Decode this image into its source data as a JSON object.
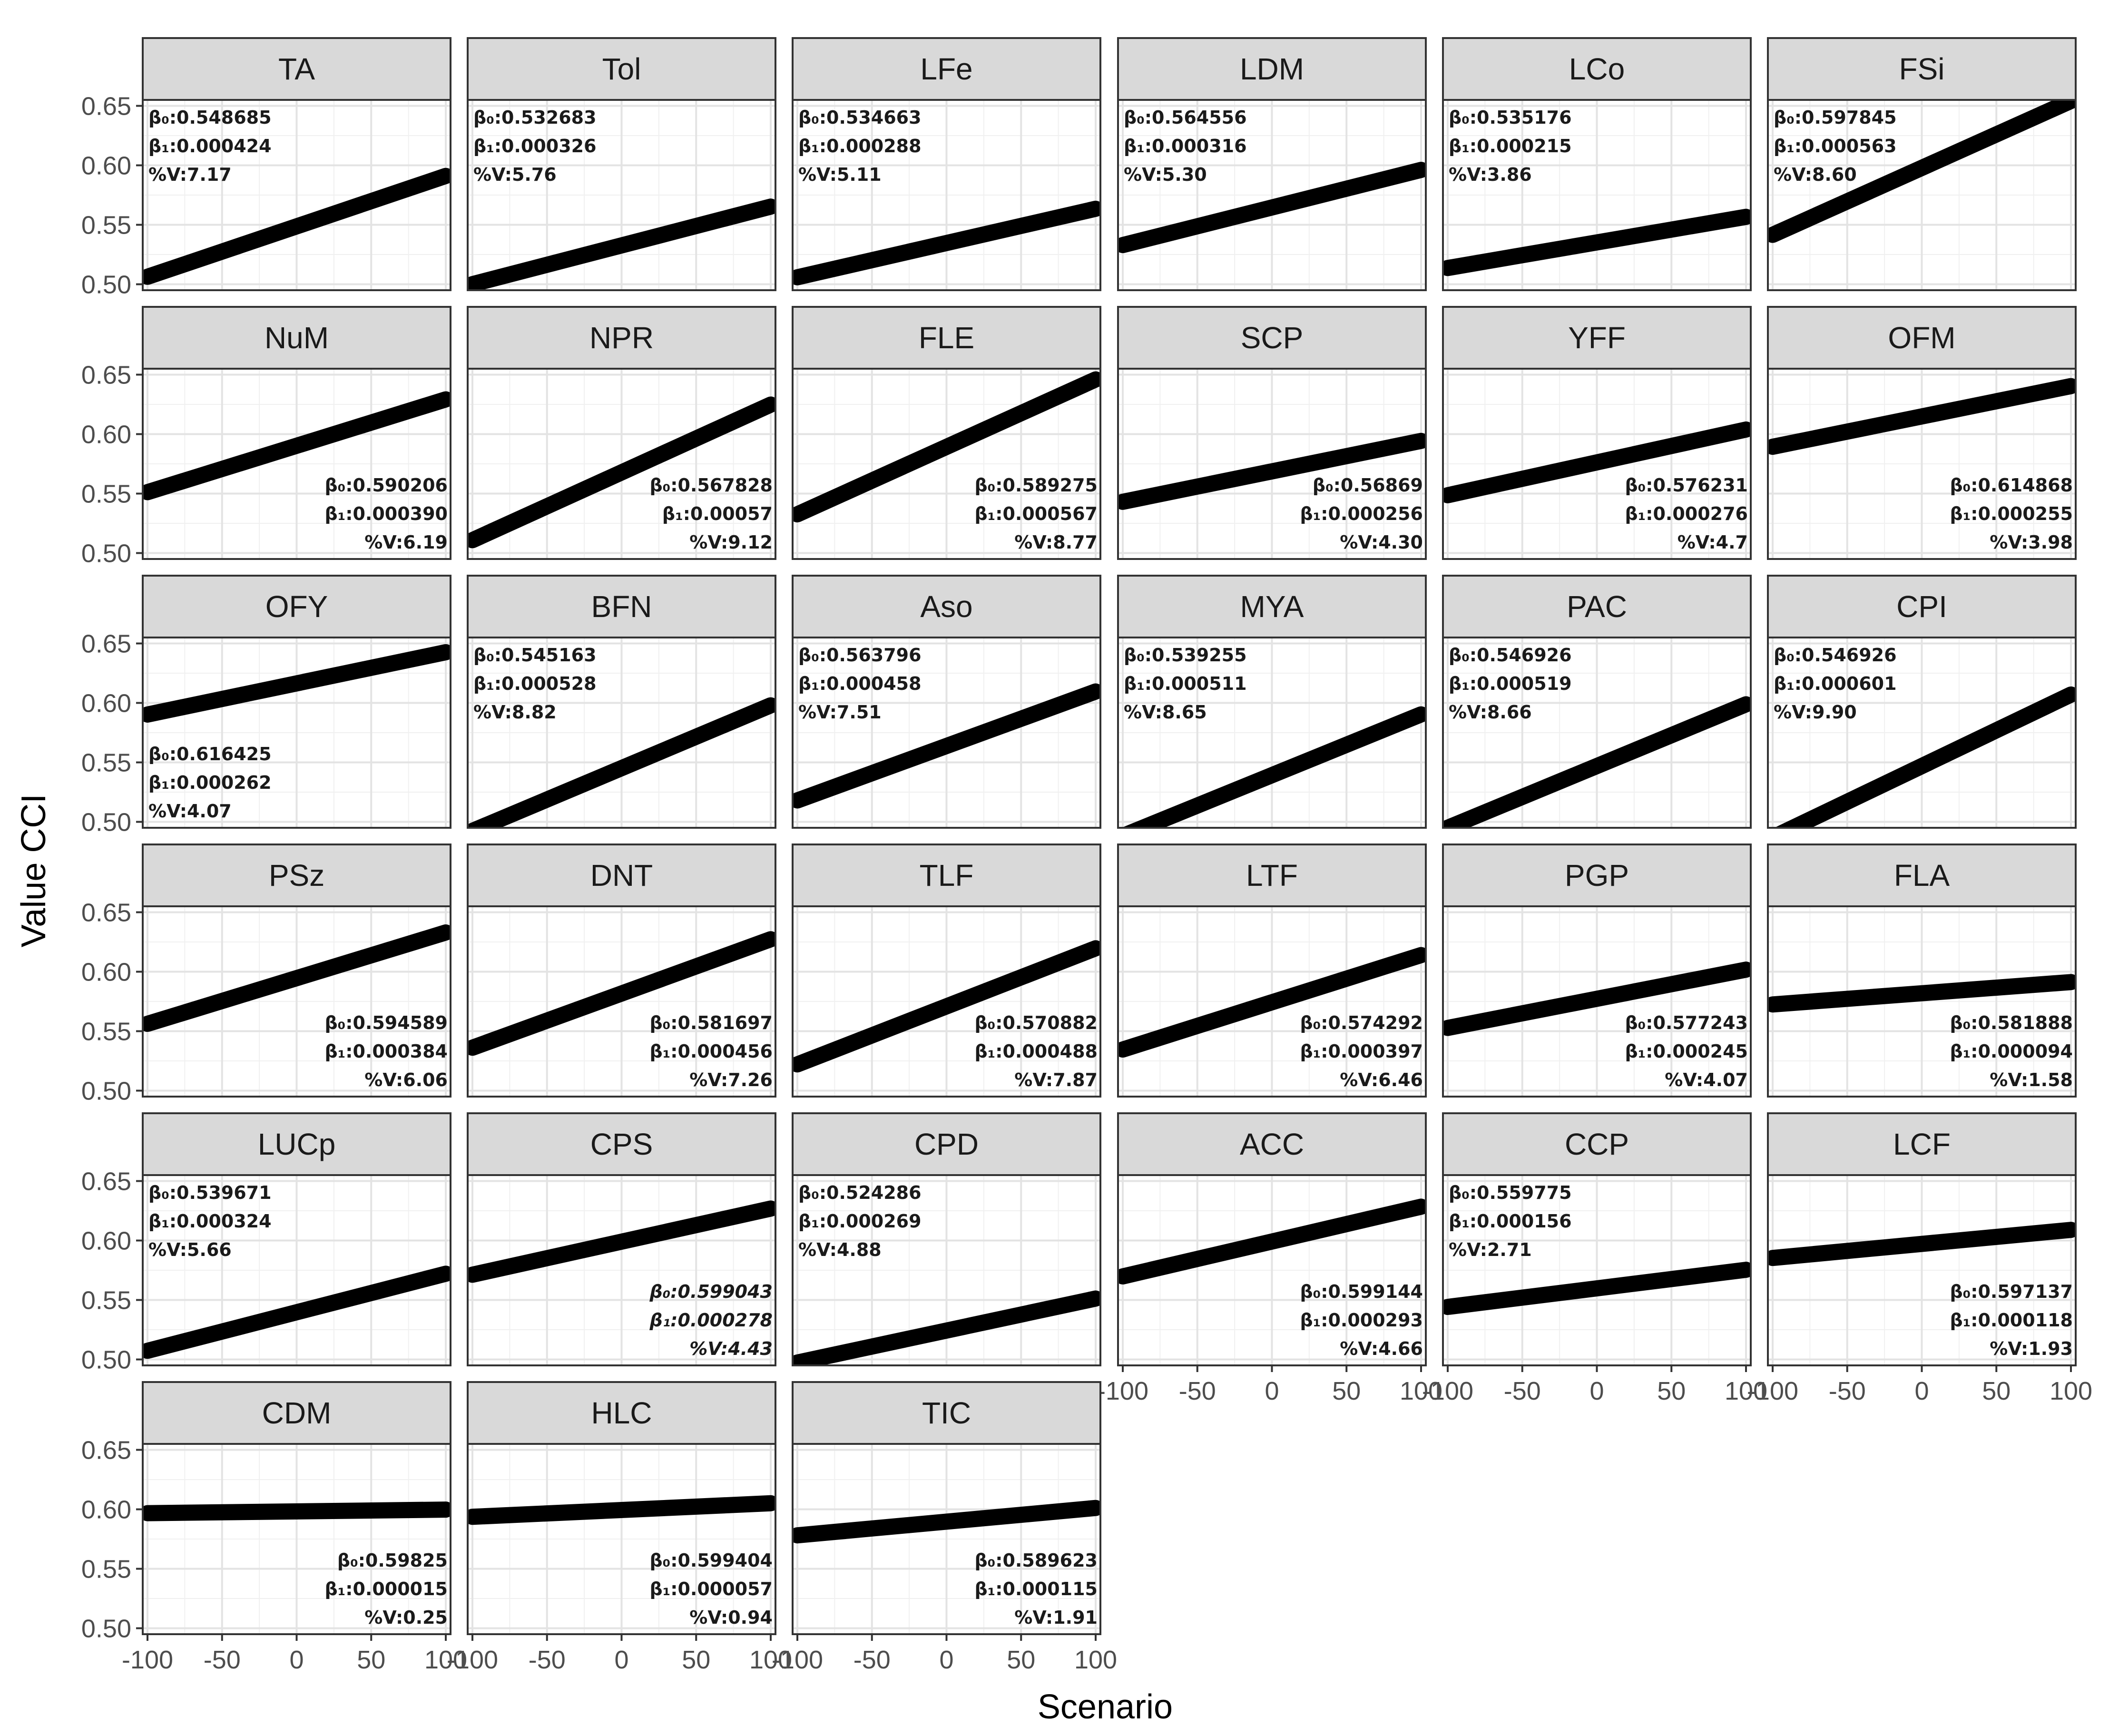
{
  "chart_data": {
    "type": "line",
    "xlabel": "Scenario",
    "ylabel": "Value CCI",
    "xlim": [
      -100,
      100
    ],
    "ylim": [
      0.495,
      0.655
    ],
    "x_ticks": [
      -100,
      -50,
      0,
      50,
      100
    ],
    "y_ticks": [
      0.5,
      0.55,
      0.6,
      0.65
    ],
    "x_tick_labels": [
      "-100",
      "-50",
      "0",
      "50",
      "100"
    ],
    "y_tick_labels": [
      "0.50",
      "0.55",
      "0.60",
      "0.65"
    ],
    "grid": true,
    "ncol": 6,
    "coef_labels": {
      "b0": "β₀:",
      "b1": "β₁:",
      "pv": "%V:"
    },
    "panels": [
      {
        "name": "TA",
        "b0": "0.548685",
        "b1": "0.000424",
        "pv": "7.17",
        "ann": "top-left"
      },
      {
        "name": "Tol",
        "b0": "0.532683",
        "b1": "0.000326",
        "pv": "5.76",
        "ann": "top-left"
      },
      {
        "name": "LFe",
        "b0": "0.534663",
        "b1": "0.000288",
        "pv": "5.11",
        "ann": "top-left"
      },
      {
        "name": "LDM",
        "b0": "0.564556",
        "b1": "0.000316",
        "pv": "5.30",
        "ann": "top-left"
      },
      {
        "name": "LCo",
        "b0": "0.535176",
        "b1": "0.000215",
        "pv": "3.86",
        "ann": "top-left"
      },
      {
        "name": "FSi",
        "b0": "0.597845",
        "b1": "0.000563",
        "pv": "8.60",
        "ann": "top-left"
      },
      {
        "name": "NuM",
        "b0": "0.590206",
        "b1": "0.000390",
        "pv": "6.19",
        "ann": "bottom-right"
      },
      {
        "name": "NPR",
        "b0": "0.567828",
        "b1": "0.00057",
        "pv": "9.12",
        "ann": "bottom-right"
      },
      {
        "name": "FLE",
        "b0": "0.589275",
        "b1": "0.000567",
        "pv": "8.77",
        "ann": "bottom-right"
      },
      {
        "name": "SCP",
        "b0": "0.56869",
        "b1": "0.000256",
        "pv": "4.30",
        "ann": "bottom-right"
      },
      {
        "name": "YFF",
        "b0": "0.576231",
        "b1": "0.000276",
        "pv": "4.7",
        "ann": "bottom-right"
      },
      {
        "name": "OFM",
        "b0": "0.614868",
        "b1": "0.000255",
        "pv": "3.98",
        "ann": "bottom-right"
      },
      {
        "name": "OFY",
        "b0": "0.616425",
        "b1": "0.000262",
        "pv": "4.07",
        "ann": "bottom-left"
      },
      {
        "name": "BFN",
        "b0": "0.545163",
        "b1": "0.000528",
        "pv": "8.82",
        "ann": "top-left"
      },
      {
        "name": "Aso",
        "b0": "0.563796",
        "b1": "0.000458",
        "pv": "7.51",
        "ann": "top-left"
      },
      {
        "name": "MYA",
        "b0": "0.539255",
        "b1": "0.000511",
        "pv": "8.65",
        "ann": "top-left"
      },
      {
        "name": "PAC",
        "b0": "0.546926",
        "b1": "0.000519",
        "pv": "8.66",
        "ann": "top-left"
      },
      {
        "name": "CPI",
        "b0": "0.546926",
        "b1": "0.000601",
        "pv": "9.90",
        "ann": "top-left"
      },
      {
        "name": "PSz",
        "b0": "0.594589",
        "b1": "0.000384",
        "pv": "6.06",
        "ann": "bottom-right"
      },
      {
        "name": "DNT",
        "b0": "0.581697",
        "b1": "0.000456",
        "pv": "7.26",
        "ann": "bottom-right"
      },
      {
        "name": "TLF",
        "b0": "0.570882",
        "b1": "0.000488",
        "pv": "7.87",
        "ann": "bottom-right"
      },
      {
        "name": "LTF",
        "b0": "0.574292",
        "b1": "0.000397",
        "pv": "6.46",
        "ann": "bottom-right"
      },
      {
        "name": "PGP",
        "b0": "0.577243",
        "b1": "0.000245",
        "pv": "4.07",
        "ann": "bottom-right"
      },
      {
        "name": "FLA",
        "b0": "0.581888",
        "b1": "0.000094",
        "pv": "1.58",
        "ann": "bottom-right"
      },
      {
        "name": "LUCp",
        "b0": "0.539671",
        "b1": "0.000324",
        "pv": "5.66",
        "ann": "top-left"
      },
      {
        "name": "CPS",
        "b0": "0.599043",
        "b1": "0.000278",
        "pv": "4.43",
        "ann": "bottom-right",
        "italic": true
      },
      {
        "name": "CPD",
        "b0": "0.524286",
        "b1": "0.000269",
        "pv": "4.88",
        "ann": "top-left"
      },
      {
        "name": "ACC",
        "b0": "0.599144",
        "b1": "0.000293",
        "pv": "4.66",
        "ann": "bottom-right"
      },
      {
        "name": "CCP",
        "b0": "0.559775",
        "b1": "0.000156",
        "pv": "2.71",
        "ann": "top-left"
      },
      {
        "name": "LCF",
        "b0": "0.597137",
        "b1": "0.000118",
        "pv": "1.93",
        "ann": "bottom-right"
      },
      {
        "name": "CDM",
        "b0": "0.59825",
        "b1": "0.000015",
        "pv": "0.25",
        "ann": "bottom-right"
      },
      {
        "name": "HLC",
        "b0": "0.599404",
        "b1": "0.000057",
        "pv": "0.94",
        "ann": "bottom-right"
      },
      {
        "name": "TIC",
        "b0": "0.589623",
        "b1": "0.000115",
        "pv": "1.91",
        "ann": "bottom-right"
      }
    ]
  }
}
